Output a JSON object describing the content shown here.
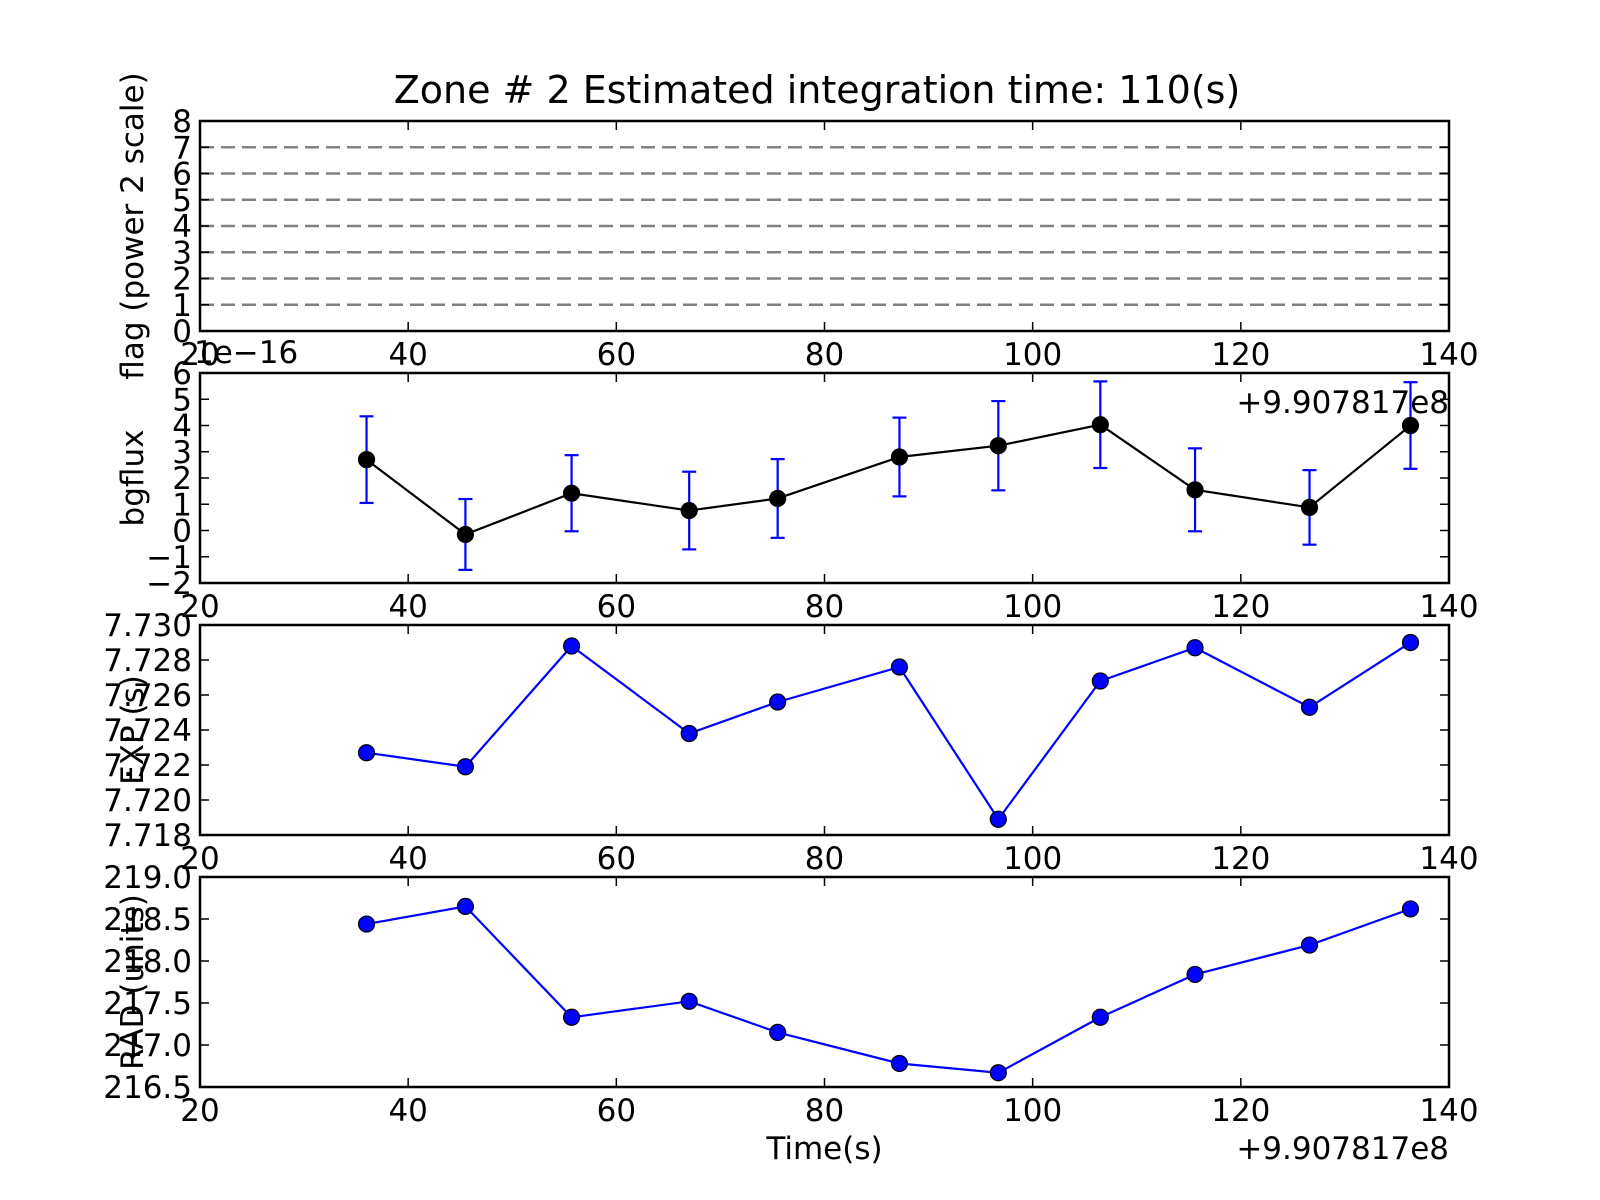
{
  "chart_data": [
    {
      "type": "line",
      "title": "Zone # 2 Estimated integration time: 110(s)",
      "ylabel": "flag (power 2 scale)",
      "xlabel": "",
      "xlim": [
        20,
        140
      ],
      "ylim": [
        0,
        8
      ],
      "x_ticks": [
        "20",
        "40",
        "60",
        "80",
        "100",
        "120",
        "140"
      ],
      "y_ticks": [
        "0",
        "1",
        "2",
        "3",
        "4",
        "5",
        "6",
        "7",
        "8"
      ],
      "x_offset_text": "",
      "y_offset_text": "",
      "hlines": [
        1,
        2,
        3,
        4,
        5,
        6,
        7
      ],
      "hline_color": "#808080",
      "grid": false
    },
    {
      "type": "line",
      "title": "",
      "ylabel": "bgflux",
      "xlabel": "",
      "xlim": [
        20,
        140
      ],
      "ylim": [
        -2,
        6
      ],
      "x_ticks": [
        "20",
        "40",
        "60",
        "80",
        "100",
        "120",
        "140"
      ],
      "y_ticks": [
        "−2",
        "−1",
        "0",
        "1",
        "2",
        "3",
        "4",
        "5",
        "6"
      ],
      "x_offset_text": "+9.907817e8",
      "y_offset_text": "1e−16",
      "line_color": "#000000",
      "errorbar_color": "#0000ff",
      "x": [
        36,
        45.5,
        55.7,
        67,
        75.5,
        87.2,
        96.7,
        106.5,
        115.6,
        126.6,
        136.3
      ],
      "y": [
        2.7,
        -0.15,
        1.42,
        0.76,
        1.22,
        2.8,
        3.23,
        4.03,
        1.55,
        0.88,
        4.0
      ],
      "yerr": [
        1.65,
        1.35,
        1.45,
        1.48,
        1.5,
        1.5,
        1.7,
        1.65,
        1.58,
        1.42,
        1.65
      ],
      "grid": false
    },
    {
      "type": "line",
      "title": "",
      "ylabel": "EXP (s)",
      "xlabel": "",
      "xlim": [
        20,
        140
      ],
      "ylim": [
        7.718,
        7.73
      ],
      "x_ticks": [
        "20",
        "40",
        "60",
        "80",
        "100",
        "120",
        "140"
      ],
      "y_ticks": [
        "7.718",
        "7.720",
        "7.722",
        "7.724",
        "7.726",
        "7.728",
        "7.730"
      ],
      "x_offset_text": "",
      "y_offset_text": "",
      "line_color": "#0000ff",
      "marker_color": "#0000ff",
      "x": [
        36,
        45.5,
        55.7,
        67,
        75.5,
        87.2,
        96.7,
        106.5,
        115.6,
        126.6,
        136.3
      ],
      "y": [
        7.7227,
        7.7219,
        7.7288,
        7.7238,
        7.7256,
        7.7276,
        7.7189,
        7.7268,
        7.7287,
        7.7253,
        7.729
      ],
      "grid": false
    },
    {
      "type": "line",
      "title": "",
      "ylabel": "RAD (units)",
      "xlabel": "Time(s)",
      "xlim": [
        20,
        140
      ],
      "ylim": [
        216.5,
        219.0
      ],
      "x_ticks": [
        "20",
        "40",
        "60",
        "80",
        "100",
        "120",
        "140"
      ],
      "y_ticks": [
        "216.5",
        "217.0",
        "217.5",
        "218.0",
        "218.5",
        "219.0"
      ],
      "x_offset_text": "+9.907817e8",
      "y_offset_text": "",
      "line_color": "#0000ff",
      "marker_color": "#0000ff",
      "x": [
        36,
        45.5,
        55.7,
        67,
        75.5,
        87.2,
        96.7,
        106.5,
        115.6,
        126.6,
        136.3
      ],
      "y": [
        218.44,
        218.65,
        217.33,
        217.52,
        217.15,
        216.78,
        216.67,
        217.33,
        217.84,
        218.19,
        218.62
      ],
      "grid": false
    }
  ]
}
